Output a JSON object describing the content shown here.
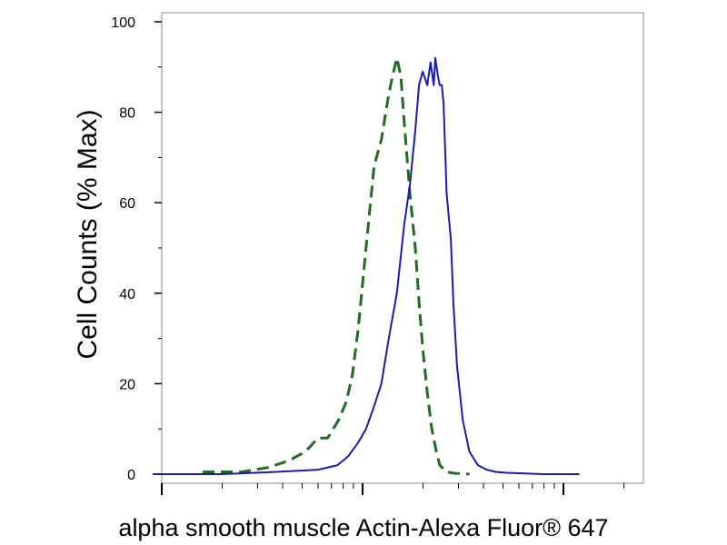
{
  "chart_data": {
    "type": "line",
    "title": "",
    "xlabel": "alpha smooth muscle Actin-Alexa Fluor® 647",
    "ylabel": "Cell Counts (% Max)",
    "x_scale": "log",
    "xlim": [
      0.001,
      0.25
    ],
    "ylim": [
      -2,
      102
    ],
    "yticks": [
      "0",
      "20",
      "40",
      "60",
      "80",
      "100"
    ],
    "grid": false,
    "legend": "none",
    "series": [
      {
        "style": "dashed",
        "color": "#1e6e1e",
        "x": [
          0.0016,
          0.0025,
          0.0034,
          0.0043,
          0.0052,
          0.006,
          0.0067,
          0.0076,
          0.0083,
          0.0089,
          0.0095,
          0.0104,
          0.0114,
          0.0124,
          0.0135,
          0.0141,
          0.0148,
          0.0155,
          0.0161,
          0.0172,
          0.0183,
          0.0191,
          0.0199,
          0.021,
          0.0221,
          0.0233,
          0.0242,
          0.0261,
          0.0285,
          0.031,
          0.034
        ],
        "y": [
          0.5,
          0.5,
          1.5,
          3,
          5,
          8,
          8,
          12,
          16,
          22,
          32,
          50,
          68,
          74,
          84,
          88,
          92,
          88,
          78,
          62,
          50,
          38,
          28,
          18,
          10,
          5,
          2,
          0.5,
          0.2,
          0.1,
          0
        ]
      },
      {
        "style": "solid",
        "color": "#1a1ab4",
        "x": [
          0.0009,
          0.002,
          0.0037,
          0.006,
          0.0075,
          0.0085,
          0.0095,
          0.0104,
          0.0114,
          0.0124,
          0.0135,
          0.0148,
          0.0161,
          0.0172,
          0.0183,
          0.0191,
          0.0199,
          0.021,
          0.0218,
          0.0226,
          0.023,
          0.0237,
          0.0242,
          0.0248,
          0.0253,
          0.0262,
          0.0275,
          0.0283,
          0.0295,
          0.0315,
          0.034,
          0.0375,
          0.0415,
          0.046,
          0.052,
          0.06,
          0.08,
          0.12
        ],
        "y": [
          0,
          0,
          0.5,
          1,
          2,
          4,
          7,
          10,
          15,
          20,
          30,
          40,
          55,
          64,
          76,
          86,
          89,
          86,
          91,
          86,
          92,
          88,
          86,
          86,
          82,
          62,
          52,
          38,
          24,
          12,
          5,
          2,
          1,
          0.5,
          0.3,
          0.2,
          0,
          0
        ]
      }
    ]
  }
}
